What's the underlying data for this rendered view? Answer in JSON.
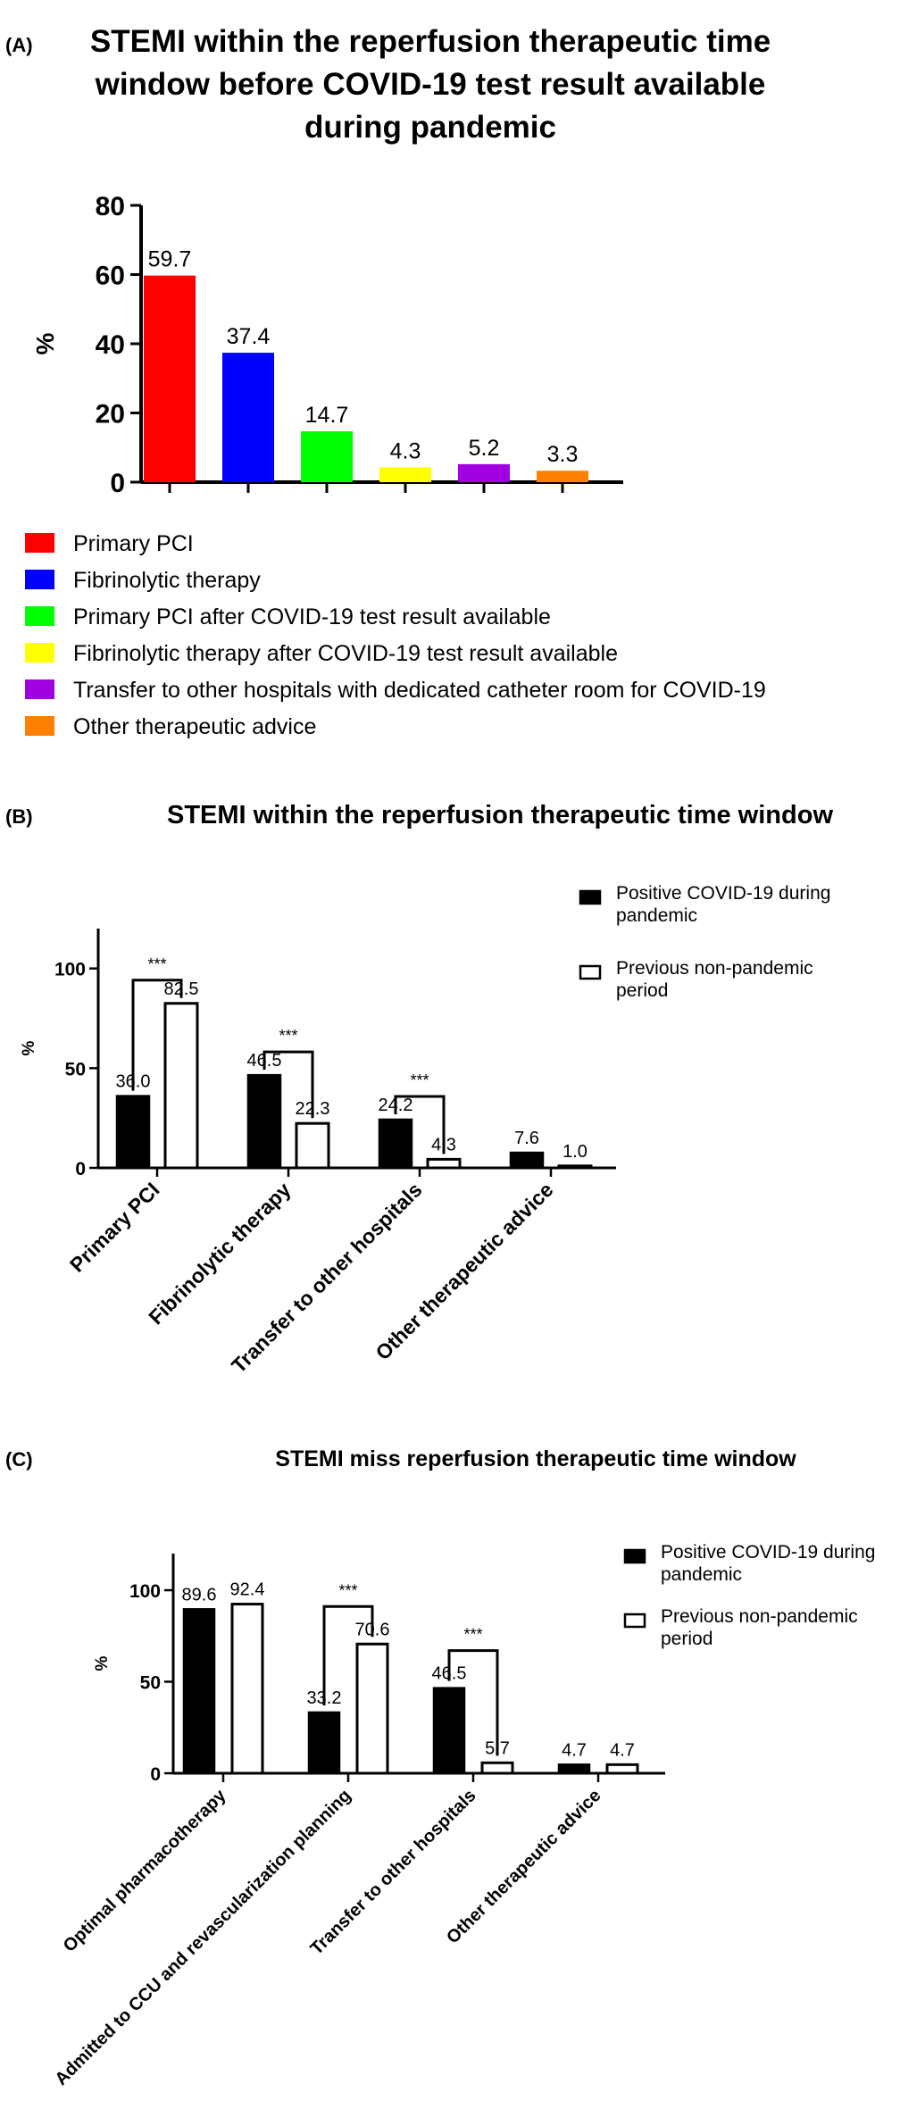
{
  "chart_data": [
    {
      "panel_label": "(A)",
      "type": "bar",
      "title_lines": [
        "STEMI within the reperfusion therapeutic time",
        "window before COVID-19 test result available",
        "during pandemic"
      ],
      "ylabel": "%",
      "ylim": [
        0,
        80
      ],
      "yticks": [
        "0",
        "20",
        "40",
        "60",
        "80"
      ],
      "grid": false,
      "categories": [
        "Primary PCI",
        "Fibrinolytic therapy",
        "Primary PCI after COVID-19 test result available",
        "Fibrinolytic therapy after COVID-19 test result available",
        "Transfer to other hospitals with dedicated catheter room for COVID-19",
        "Other therapeutic advice"
      ],
      "values": [
        59.7,
        37.4,
        14.7,
        4.3,
        5.2,
        3.3
      ],
      "value_labels": [
        "59.7",
        "37.4",
        "14.7",
        "4.3",
        "5.2",
        "3.3"
      ],
      "colors": [
        "#ff0000",
        "#0000ff",
        "#00ff00",
        "#ffff00",
        "#a000e0",
        "#ff8000"
      ],
      "legend_position": "below"
    },
    {
      "panel_label": "(B)",
      "type": "bar",
      "title": "STEMI within the reperfusion therapeutic time window",
      "ylabel": "%",
      "ylim": [
        0,
        120
      ],
      "yticks": [
        "0",
        "50",
        "100"
      ],
      "grid": false,
      "categories": [
        "Primary PCI",
        "Fibrinolytic therapy",
        "Transfer to other hospitals",
        "Other therapeutic advice"
      ],
      "series": [
        {
          "name": "Positive COVID-19 during pandemic",
          "values": [
            36.0,
            46.5,
            24.2,
            7.6
          ],
          "labels": [
            "36.0",
            "46.5",
            "24.2",
            "7.6"
          ],
          "color": "#000000"
        },
        {
          "name": "Previous non-pandemic period",
          "values": [
            82.5,
            22.3,
            4.3,
            1.0
          ],
          "labels": [
            "82.5",
            "22.3",
            "4.3",
            "1.0"
          ],
          "color": "#ffffff"
        }
      ],
      "significance": [
        {
          "category_index": 0,
          "label": "***"
        },
        {
          "category_index": 1,
          "label": "***"
        },
        {
          "category_index": 2,
          "label": "***"
        }
      ],
      "legend_position": "top-right"
    },
    {
      "panel_label": "(C)",
      "type": "bar",
      "title": "STEMI miss reperfusion therapeutic time window",
      "ylabel": "%",
      "ylim": [
        0,
        120
      ],
      "yticks": [
        "0",
        "50",
        "100"
      ],
      "grid": false,
      "categories": [
        "Optimal pharmacotherapy",
        "Admitted to CCU and revascularization planning",
        "Transfer to other hospitals",
        "Other therapeutic advice"
      ],
      "series": [
        {
          "name": "Positive COVID-19 during pandemic",
          "values": [
            89.6,
            33.2,
            46.5,
            4.7
          ],
          "labels": [
            "89.6",
            "33.2",
            "46.5",
            "4.7"
          ],
          "color": "#000000"
        },
        {
          "name": "Previous non-pandemic period",
          "values": [
            92.4,
            70.6,
            5.7,
            4.7
          ],
          "labels": [
            "92.4",
            "70.6",
            "5.7",
            "4.7"
          ],
          "color": "#ffffff"
        }
      ],
      "significance": [
        {
          "category_index": 1,
          "label": "***"
        },
        {
          "category_index": 2,
          "label": "***"
        }
      ],
      "legend_position": "top-right"
    }
  ]
}
